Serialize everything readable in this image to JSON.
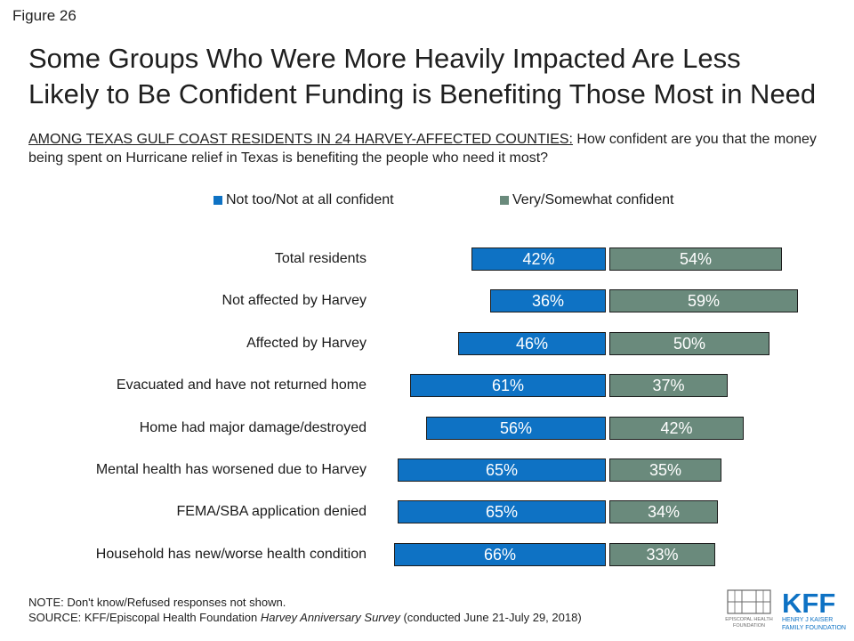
{
  "figure_label": "Figure 26",
  "title": [
    "Some Groups Who Were More Heavily Impacted Are Less",
    "Likely to Be Confident Funding is Benefiting Those Most in Need"
  ],
  "subtitle": {
    "underlined": "AMONG TEXAS GULF COAST RESIDENTS IN 24 HARVEY-AFFECTED COUNTIES:",
    "rest": " How confident are you that the money being spent on Hurricane relief in Texas is benefiting the people who need it most?"
  },
  "colors": {
    "not_confident": "#0e72c4",
    "confident": "#6a8a7c"
  },
  "chart_data": {
    "type": "bar",
    "orientation": "horizontal-diverging",
    "categories": [
      "Total residents",
      "Not affected by Harvey",
      "Affected by Harvey",
      "Evacuated and have not returned home",
      "Home had major damage/destroyed",
      "Mental health has worsened due to Harvey",
      "FEMA/SBA application denied",
      "Household has new/worse health condition"
    ],
    "series": [
      {
        "name": "Not too/Not at all confident",
        "values": [
          42,
          36,
          46,
          61,
          56,
          65,
          65,
          66
        ],
        "labels": [
          "42%",
          "36%",
          "46%",
          "61%",
          "56%",
          "65%",
          "65%",
          "66%"
        ]
      },
      {
        "name": "Very/Somewhat confident",
        "values": [
          54,
          59,
          50,
          37,
          42,
          35,
          34,
          33
        ],
        "labels": [
          "54%",
          "59%",
          "50%",
          "37%",
          "42%",
          "35%",
          "34%",
          "33%"
        ]
      }
    ],
    "legend_position": "top",
    "grid": false
  },
  "footer": {
    "note": "NOTE: Don't know/Refused responses not shown.",
    "source_prefix": "SOURCE: KFF/Episcopal Health Foundation ",
    "source_italic": "Harvey Anniversary Survey",
    "source_suffix": " (conducted June 21-July 29, 2018)"
  },
  "logos": {
    "ehf_text": [
      "EPISCOPAL HEALTH",
      "FOUNDATION"
    ],
    "kff_text": [
      "KFF",
      "HENRY J KAISER",
      "FAMILY FOUNDATION"
    ]
  }
}
